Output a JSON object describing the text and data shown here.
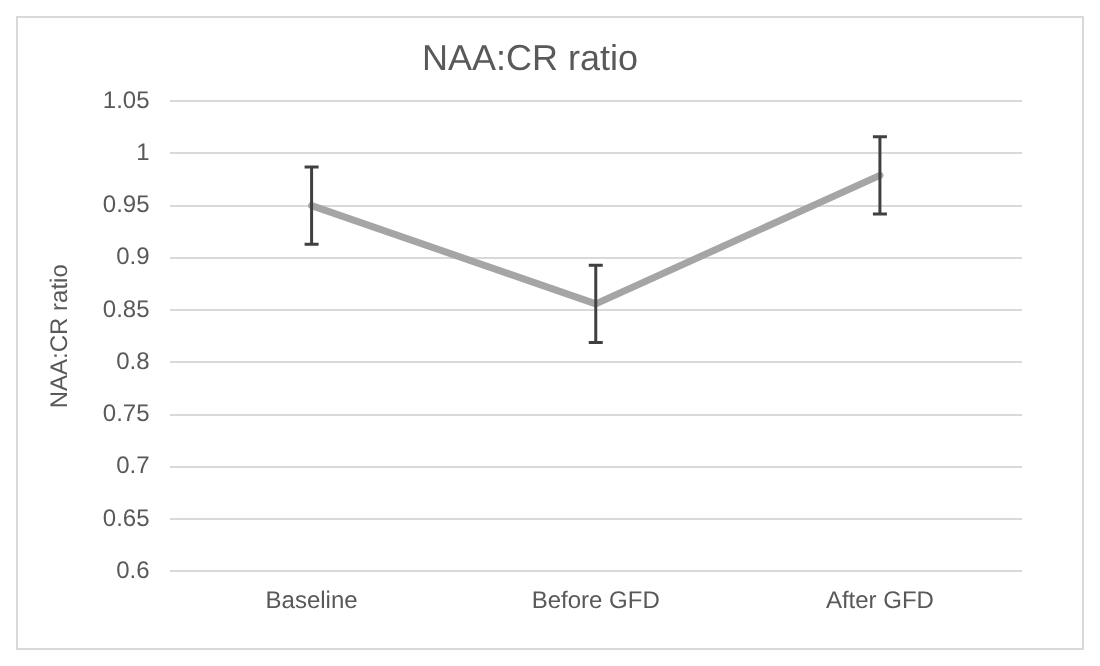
{
  "chart_data": {
    "type": "line",
    "title": "NAA:CR ratio",
    "ylabel": "NAA:CR ratio",
    "categories": [
      "Baseline",
      "Before GFD",
      "After GFD"
    ],
    "series": [
      {
        "color": "#a5a5a5",
        "values": [
          0.95,
          0.856,
          0.979
        ],
        "errors": [
          0.037,
          0.037,
          0.037
        ]
      }
    ],
    "ylim": [
      0.6,
      1.05
    ],
    "yticks": [
      0.6,
      0.65,
      0.7,
      0.75,
      0.8,
      0.85,
      0.9,
      0.95,
      1,
      1.05
    ],
    "grid": "y",
    "legend": false,
    "marker": "none",
    "line_style": "solid"
  }
}
